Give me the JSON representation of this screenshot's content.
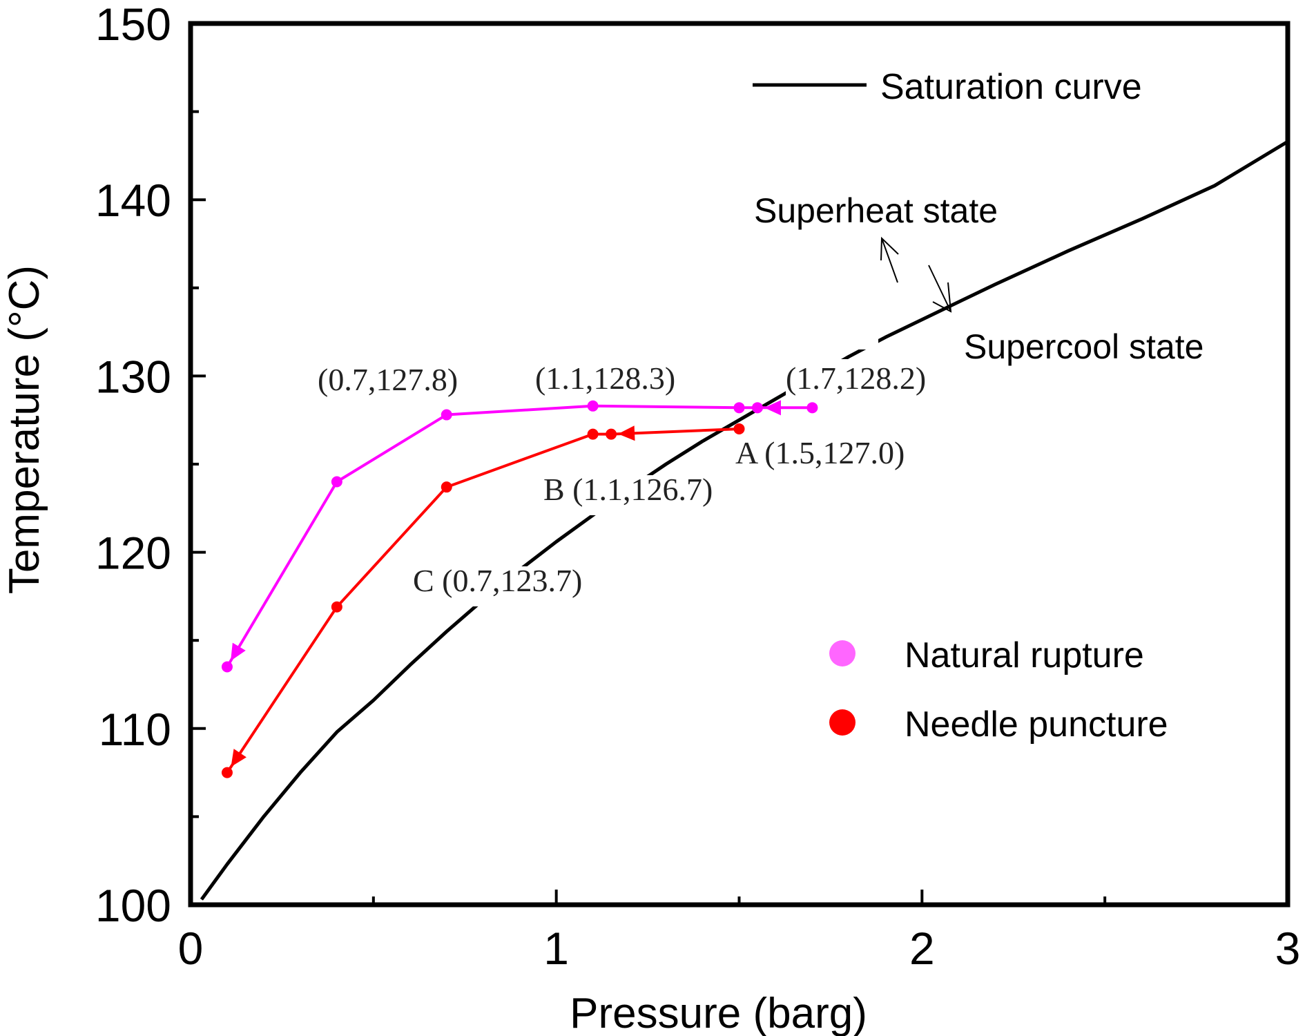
{
  "chart_data": {
    "type": "line",
    "title": "",
    "xlabel": "Pressure (barg)",
    "ylabel": "Temperature (°C)",
    "xlim": [
      0,
      3
    ],
    "ylim": [
      100,
      150
    ],
    "x_ticks": [
      0,
      1,
      2,
      3
    ],
    "x_tick_labels": [
      "0",
      "1",
      "2",
      "3"
    ],
    "x_minor_ticks": [
      0.5,
      1.5,
      2.5
    ],
    "y_ticks": [
      100,
      110,
      120,
      130,
      140,
      150
    ],
    "y_tick_labels": [
      "100",
      "110",
      "120",
      "130",
      "140",
      "150"
    ],
    "y_minor_ticks": [
      105,
      115,
      125,
      135,
      145
    ],
    "grid": false,
    "legend_placement": "top-right and bottom-right",
    "series": [
      {
        "name": "Saturation curve",
        "color": "#000000",
        "style": "line",
        "x": [
          0.03,
          0.1,
          0.2,
          0.3,
          0.4,
          0.5,
          0.6,
          0.7,
          0.8,
          0.9,
          1.0,
          1.1,
          1.2,
          1.3,
          1.4,
          1.5,
          1.6,
          1.7,
          1.8,
          1.9,
          2.0,
          2.2,
          2.4,
          2.6,
          2.8,
          3.0
        ],
        "y": [
          100.3,
          102.3,
          105.0,
          107.5,
          109.8,
          111.6,
          113.6,
          115.5,
          117.3,
          119.0,
          120.6,
          122.1,
          123.6,
          125.0,
          126.3,
          127.5,
          128.7,
          129.9,
          131.1,
          132.2,
          133.2,
          135.2,
          137.1,
          138.9,
          140.8,
          143.3
        ]
      },
      {
        "name": "Natural rupture",
        "color": "#FF00FF",
        "legend_marker_color": "#FF66FF",
        "style": "line+marker",
        "x": [
          1.7,
          1.55,
          1.5,
          1.1,
          0.7,
          0.4,
          0.1
        ],
        "y": [
          128.2,
          128.2,
          128.2,
          128.3,
          127.8,
          124.0,
          113.5
        ],
        "arrow_points": [
          1,
          6
        ]
      },
      {
        "name": "Needle puncture",
        "color": "#FF0000",
        "legend_marker_color": "#FF0000",
        "style": "line+marker",
        "x": [
          1.5,
          1.15,
          1.1,
          0.7,
          0.4,
          0.1
        ],
        "y": [
          127.0,
          126.7,
          126.7,
          123.7,
          116.9,
          107.5
        ],
        "arrow_points": [
          1,
          5
        ]
      }
    ],
    "annotations": [
      {
        "text": "(0.7,127.8)",
        "x": 0.7,
        "y": 127.8
      },
      {
        "text": "(1.1,128.3)",
        "x": 1.1,
        "y": 128.3
      },
      {
        "text": "(1.7,128.2)",
        "x": 1.7,
        "y": 128.2
      },
      {
        "text": "A (1.5,127.0)",
        "x": 1.5,
        "y": 127.0
      },
      {
        "text": "B (1.1,126.7)",
        "x": 1.1,
        "y": 126.7
      },
      {
        "text": "C (0.7,123.7)",
        "x": 0.7,
        "y": 123.7
      },
      {
        "text": "Superheat state",
        "x": 2.1,
        "y": 138.7
      },
      {
        "text": "Supercool state",
        "x": 2.4,
        "y": 131.0
      }
    ]
  },
  "legend": {
    "saturation": "Saturation curve",
    "natural": "Natural rupture",
    "needle": "Needle puncture"
  },
  "labels": {
    "superheat": "Superheat state",
    "supercool": "Supercool state",
    "p1": "(0.7,127.8)",
    "p2": "(1.1,128.3)",
    "p3": "(1.7,128.2)",
    "pA": "A (1.5,127.0)",
    "pB": "B (1.1,126.7)",
    "pC": "C (0.7,123.7)"
  }
}
